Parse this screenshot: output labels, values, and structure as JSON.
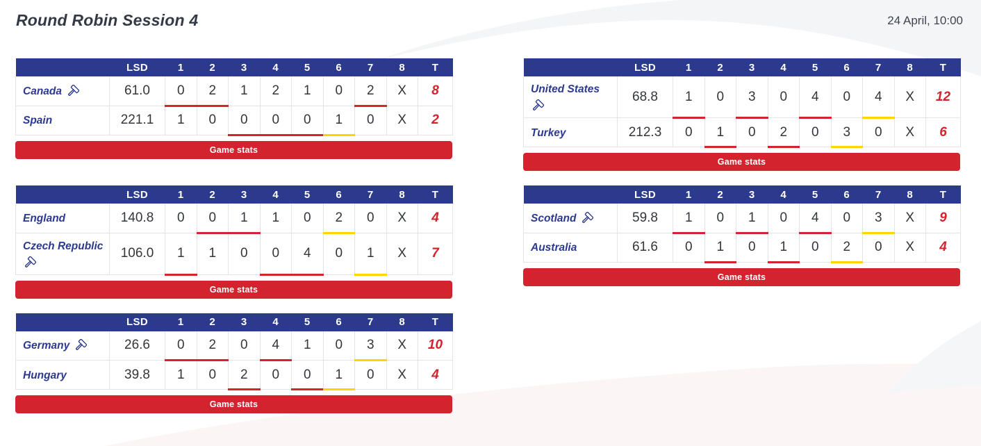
{
  "page": {
    "title": "Round Robin Session 4",
    "datetime": "24 April, 10:00",
    "game_stats_label": "Game stats"
  },
  "colors": {
    "header_navy": "#2B3A8C",
    "team_blue": "#2B3990",
    "red": "#D2232E",
    "yellow": "#FFD400"
  },
  "table": {
    "columns": [
      "",
      "LSD",
      "1",
      "2",
      "3",
      "4",
      "5",
      "6",
      "7",
      "8",
      "T"
    ]
  },
  "matches": [
    {
      "teams": [
        {
          "name": "Canada",
          "hammer": true,
          "hammer_placement": "inline",
          "lsd": "61.0",
          "ends": [
            "0",
            "2",
            "1",
            "2",
            "1",
            "0",
            "2",
            "X"
          ],
          "total": "8",
          "end_marks": [
            "red",
            "red",
            "",
            "",
            "",
            "",
            "red",
            ""
          ]
        },
        {
          "name": "Spain",
          "hammer": false,
          "hammer_placement": "inline",
          "lsd": "221.1",
          "ends": [
            "1",
            "0",
            "0",
            "0",
            "0",
            "1",
            "0",
            "X"
          ],
          "total": "2",
          "end_marks": [
            "",
            "",
            "red",
            "red",
            "red",
            "yellow",
            "",
            ""
          ]
        }
      ]
    },
    {
      "teams": [
        {
          "name": "United States",
          "hammer": true,
          "hammer_placement": "below",
          "lsd": "68.8",
          "ends": [
            "1",
            "0",
            "3",
            "0",
            "4",
            "0",
            "4",
            "X"
          ],
          "total": "12",
          "end_marks": [
            "red",
            "",
            "red",
            "",
            "red",
            "",
            "yellow",
            ""
          ]
        },
        {
          "name": "Turkey",
          "hammer": false,
          "hammer_placement": "inline",
          "lsd": "212.3",
          "ends": [
            "0",
            "1",
            "0",
            "2",
            "0",
            "3",
            "0",
            "X"
          ],
          "total": "6",
          "end_marks": [
            "",
            "red",
            "",
            "red",
            "",
            "yellow",
            "",
            ""
          ]
        }
      ]
    },
    {
      "teams": [
        {
          "name": "England",
          "hammer": false,
          "hammer_placement": "inline",
          "lsd": "140.8",
          "ends": [
            "0",
            "0",
            "1",
            "1",
            "0",
            "2",
            "0",
            "X"
          ],
          "total": "4",
          "end_marks": [
            "",
            "red",
            "red",
            "",
            "",
            "yellow",
            "",
            ""
          ]
        },
        {
          "name": "Czech Republic",
          "hammer": true,
          "hammer_placement": "below",
          "lsd": "106.0",
          "ends": [
            "1",
            "1",
            "0",
            "0",
            "4",
            "0",
            "1",
            "X"
          ],
          "total": "7",
          "end_marks": [
            "red",
            "",
            "",
            "red",
            "red",
            "",
            "yellow",
            ""
          ]
        }
      ]
    },
    {
      "teams": [
        {
          "name": "Scotland",
          "hammer": true,
          "hammer_placement": "inline",
          "lsd": "59.8",
          "ends": [
            "1",
            "0",
            "1",
            "0",
            "4",
            "0",
            "3",
            "X"
          ],
          "total": "9",
          "end_marks": [
            "red",
            "",
            "red",
            "",
            "red",
            "",
            "yellow",
            ""
          ]
        },
        {
          "name": "Australia",
          "hammer": false,
          "hammer_placement": "inline",
          "lsd": "61.6",
          "ends": [
            "0",
            "1",
            "0",
            "1",
            "0",
            "2",
            "0",
            "X"
          ],
          "total": "4",
          "end_marks": [
            "",
            "red",
            "",
            "red",
            "",
            "yellow",
            "",
            ""
          ]
        }
      ]
    },
    {
      "teams": [
        {
          "name": "Germany",
          "hammer": true,
          "hammer_placement": "inline",
          "lsd": "26.6",
          "ends": [
            "0",
            "2",
            "0",
            "4",
            "1",
            "0",
            "3",
            "X"
          ],
          "total": "10",
          "end_marks": [
            "red",
            "red",
            "",
            "red",
            "",
            "",
            "yellow",
            ""
          ]
        },
        {
          "name": "Hungary",
          "hammer": false,
          "hammer_placement": "inline",
          "lsd": "39.8",
          "ends": [
            "1",
            "0",
            "2",
            "0",
            "0",
            "1",
            "0",
            "X"
          ],
          "total": "4",
          "end_marks": [
            "",
            "",
            "red",
            "",
            "red",
            "yellow",
            "",
            ""
          ]
        }
      ]
    }
  ]
}
